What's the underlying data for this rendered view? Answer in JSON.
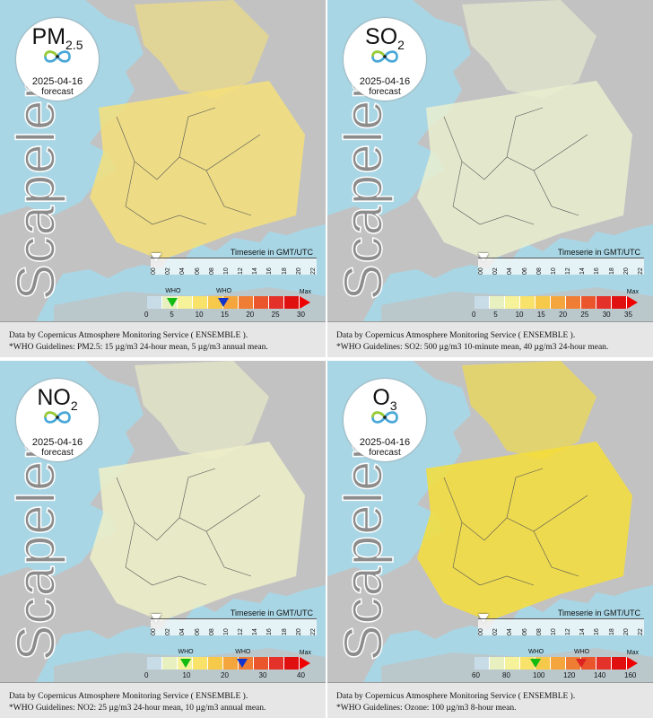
{
  "common": {
    "date": "2025-04-16",
    "kind": "forecast",
    "brand": "Scapeler",
    "timeserie": "Timeserie in GMT/UTC",
    "hours": [
      "00",
      "02",
      "04",
      "06",
      "08",
      "10",
      "12",
      "14",
      "16",
      "18",
      "20",
      "22"
    ],
    "source": "Data by Copernicus Atmosphere Monitoring Service ( ENSEMBLE ).",
    "max_label": "Max",
    "who_label": "WHO",
    "colors": {
      "sea": "#a9d6e5",
      "land": "#c2c2c2",
      "accent": "#ff0000"
    }
  },
  "panels": [
    {
      "pollutant": "PM",
      "sub": "2.5",
      "guideline": "*WHO Guidelines: PM2.5: 15 µg/m3 24-hour mean, 5 µg/m3 annual mean.",
      "scale": [
        "0",
        "5",
        "10",
        "15",
        "20",
        "25",
        "30"
      ],
      "who_markers": [
        {
          "color": "green",
          "value": "5"
        },
        {
          "color": "blue",
          "value": "15"
        }
      ],
      "overlay": "#f5e07a"
    },
    {
      "pollutant": "SO",
      "sub": "2",
      "guideline": "*WHO Guidelines: SO2: 500 µg/m3 10-minute mean, 40 µg/m3 24-hour mean.",
      "scale": [
        "0",
        "5",
        "10",
        "15",
        "20",
        "25",
        "30",
        "35"
      ],
      "who_markers": [],
      "overlay": "#e9efcf"
    },
    {
      "pollutant": "NO",
      "sub": "2",
      "guideline": "*WHO Guidelines: NO2: 25 µg/m3 24-hour mean, 10 µg/m3 annual mean.",
      "scale": [
        "0",
        "10",
        "20",
        "30",
        "40"
      ],
      "who_markers": [
        {
          "color": "green",
          "value": "10"
        },
        {
          "color": "blue",
          "value": "25"
        }
      ],
      "overlay": "#eef0c8"
    },
    {
      "pollutant": "O",
      "sub": "3",
      "guideline": "*WHO Guidelines: Ozone: 100 µg/m3 8-hour mean.",
      "scale": [
        "60",
        "80",
        "100",
        "120",
        "140",
        "160"
      ],
      "who_markers": [
        {
          "color": "green",
          "value": "100"
        },
        {
          "color": "red",
          "value": "130"
        }
      ],
      "overlay": "#f6de3b"
    }
  ]
}
